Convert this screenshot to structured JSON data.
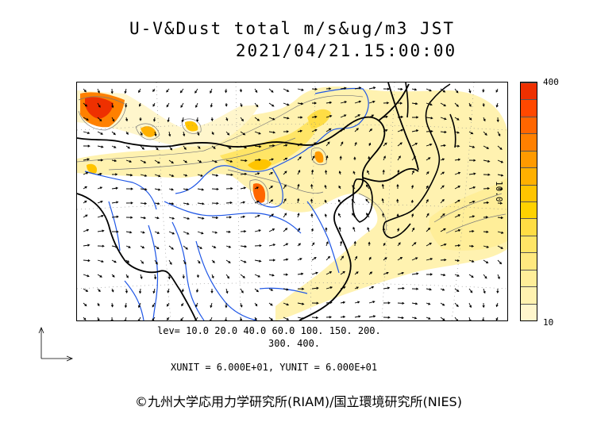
{
  "title_line1": "U-V&Dust total m/s&ug/m3 JST",
  "title_line2": "2021/04/21.15:00:00",
  "colorbar": {
    "max_label": "400",
    "min_label": "10",
    "colors": [
      "#fff6cc",
      "#fff2b0",
      "#ffee99",
      "#ffe97f",
      "#ffe566",
      "#ffdd44",
      "#ffd200",
      "#ffc400",
      "#ffb000",
      "#ff9a00",
      "#ff8000",
      "#ff6600",
      "#ff4800",
      "#ee3000"
    ]
  },
  "levels": {
    "line1": "lev= 10.0 20.0 40.0 60.0 100. 150. 200.",
    "line2": "300. 400."
  },
  "units_line": "XUNIT = 6.000E+01, YUNIT = 6.000E+01",
  "side_label": "10.0",
  "copyright": "©九州大学応用力学研究所(RIAM)/国立環境研究所(NIES)"
}
